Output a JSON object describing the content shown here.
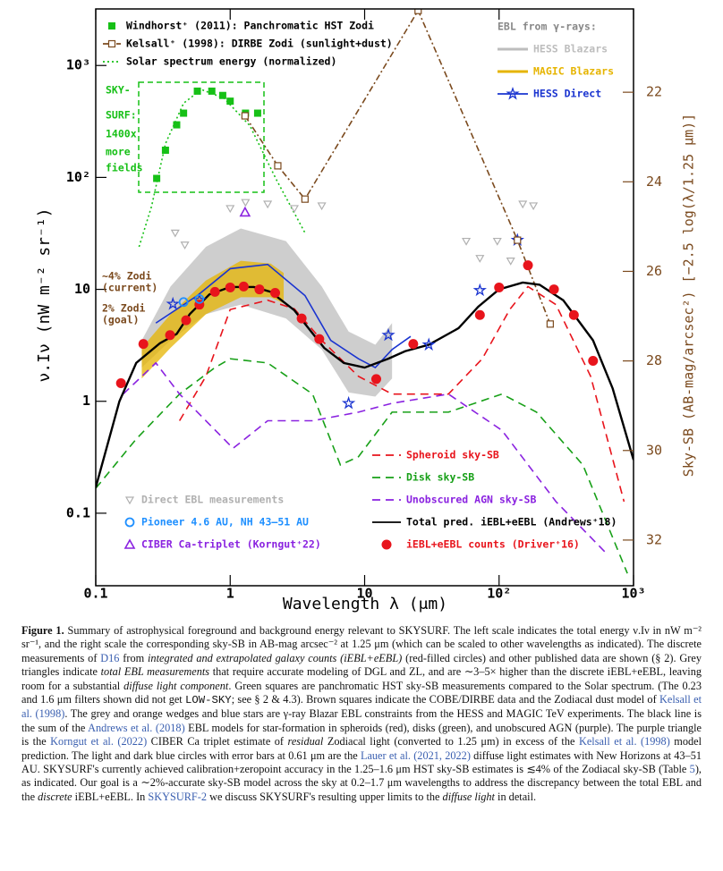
{
  "chart_data": {
    "type": "line",
    "xlabel": "Wavelength λ (μm)",
    "ylabel": "ν.Iν (nW m⁻² sr⁻¹)",
    "y2label": "Sky-SB (AB-mag/arcsec²) [−2.5 log(λ/1.25 μm)]",
    "xscale": "log",
    "yscale": "log",
    "xlim": [
      0.1,
      1000
    ],
    "ylim": [
      0.0225,
      3200
    ],
    "y2lim": [
      33.02,
      20.14
    ],
    "xticks": [
      0.1,
      1,
      10,
      {
        "value": 100,
        "label": "10²"
      },
      {
        "value": 1000,
        "label": "10³"
      }
    ],
    "yticks": [
      0.1,
      1,
      10,
      {
        "value": 100,
        "label": "10²"
      },
      {
        "value": 1000,
        "label": "10³"
      }
    ],
    "y2ticks": [
      22,
      24,
      26,
      28,
      30,
      32
    ],
    "legend_title": "EBL from γ-rays:",
    "annotations": [
      "SKY-",
      "SURF:",
      "1400x",
      "more",
      "fields",
      "~4% Zodi",
      "(current)",
      "2% Zodi",
      "(goal)"
    ],
    "series": [
      {
        "name": "HESS Blazars",
        "color": "#bdbdbd",
        "style": "band",
        "legend": "upper right",
        "x": [
          0.22,
          0.36,
          0.66,
          1.2,
          2.6,
          4.8,
          7.6,
          12,
          16
        ],
        "values": [
          3.5,
          10.6,
          24,
          35,
          27,
          10.6,
          4.2,
          3.2,
          5.0
        ],
        "lower": [
          2.0,
          3.5,
          6,
          7.3,
          5.5,
          2.9,
          1.2,
          1.1,
          1.6
        ]
      },
      {
        "name": "MAGIC Blazars",
        "color": "#e6b400",
        "style": "band",
        "legend": "upper right",
        "x": [
          0.22,
          0.36,
          0.66,
          1.2,
          2.0,
          2.5
        ],
        "values": [
          3.0,
          6,
          12,
          18,
          17,
          14
        ],
        "lower": [
          1.6,
          3.0,
          6,
          8.5,
          8.5,
          7.5
        ]
      },
      {
        "name": "HESS Direct",
        "color": "#1a34d0",
        "style": "line-star",
        "legend": "upper right",
        "x": [
          0.28,
          0.57,
          1.0,
          1.9,
          3.6,
          5.6,
          9,
          12,
          16,
          22
        ],
        "values": [
          5.0,
          8.8,
          15.3,
          16.7,
          8.8,
          3.5,
          2.4,
          2.0,
          2.9,
          3.8
        ],
        "points_x": [
          0.375,
          0.59,
          7.6,
          15,
          30,
          72,
          137
        ],
        "points": [
          7.4,
          8.0,
          0.96,
          3.9,
          3.2,
          9.8,
          27.5
        ]
      },
      {
        "name": "Windhorst⁺ (2011): Panchromatic HST Zodi",
        "color": "#16c016",
        "style": "square",
        "legend": "upper left",
        "x": [
          0.284,
          0.33,
          0.4,
          0.45,
          0.57,
          0.73,
          0.88,
          1.0,
          1.3,
          1.6
        ],
        "values": [
          98,
          175,
          295,
          375,
          590,
          590,
          540,
          480,
          375,
          375
        ]
      },
      {
        "name": "Kelsall⁺ (1998): DIRBE Zodi (sunlight+dust)",
        "color": "#7b4a1e",
        "style": "dashdot-open-square",
        "legend": "upper left",
        "x": [
          1.29,
          2.26,
          3.6,
          25,
          137,
          240
        ],
        "values": [
          355,
          127,
          64,
          3100,
          27.5,
          4.9
        ]
      },
      {
        "name": "Solar spectrum energy (normalized)",
        "color": "#16c016",
        "style": "dotted",
        "legend": "upper left",
        "x": [
          0.21,
          0.26,
          0.33,
          0.45,
          0.61,
          0.9,
          1.4,
          2.2,
          3.6
        ],
        "values": [
          24,
          55,
          200,
          460,
          610,
          510,
          290,
          96,
          32
        ]
      },
      {
        "name": "Spheroid sky-SB",
        "color": "#e8141c",
        "style": "dashed",
        "legend": "lower right",
        "x": [
          0.42,
          0.66,
          1.0,
          1.9,
          3.0,
          4.8,
          9,
          16,
          42,
          75,
          120,
          164,
          265,
          480,
          850
        ],
        "values": [
          0.67,
          1.67,
          6.6,
          8,
          6.7,
          3.5,
          1.67,
          1.16,
          1.16,
          2.4,
          6.6,
          10.6,
          7.3,
          1.67,
          0.127
        ]
      },
      {
        "name": "Disk sky-SB",
        "color": "#18a018",
        "style": "dashed",
        "legend": "lower right",
        "x": [
          0.1,
          0.2,
          0.42,
          0.77,
          1.0,
          1.9,
          4.1,
          6.6,
          9,
          16,
          42,
          105,
          190,
          420,
          900
        ],
        "values": [
          0.167,
          0.46,
          1.16,
          2.0,
          2.4,
          2.2,
          1.16,
          0.27,
          0.32,
          0.8,
          0.8,
          1.16,
          0.8,
          0.27,
          0.029
        ]
      },
      {
        "name": "Unobscured AGN sky-SB",
        "color": "#8a22e0",
        "style": "dashed",
        "legend": "lower right",
        "x": [
          0.16,
          0.28,
          0.42,
          0.66,
          1.05,
          1.9,
          4.1,
          9,
          16,
          42,
          105,
          265,
          650
        ],
        "values": [
          1.16,
          2.2,
          1.16,
          0.67,
          0.38,
          0.67,
          0.67,
          0.8,
          0.96,
          1.16,
          0.55,
          0.127,
          0.042
        ]
      },
      {
        "name": "Total pred. iEBL+eEBL (Andrews⁺18)",
        "color": "#000000",
        "style": "solid",
        "legend": "lower right",
        "x": [
          0.1,
          0.15,
          0.2,
          0.3,
          0.4,
          0.5,
          0.7,
          1,
          1.5,
          2,
          3,
          4,
          5,
          7,
          10,
          15,
          20,
          30,
          50,
          70,
          100,
          150,
          200,
          300,
          500,
          700,
          1000
        ],
        "values": [
          0.17,
          1.0,
          2.2,
          3.3,
          4.0,
          6,
          9,
          10.5,
          10.5,
          9.5,
          6.5,
          4.2,
          3.0,
          2.2,
          2.0,
          2.4,
          2.8,
          3.2,
          4.5,
          7.0,
          10,
          11.5,
          11,
          8,
          3.5,
          1.3,
          0.3
        ]
      },
      {
        "name": "iEBL+eEBL counts (Driver⁺16)",
        "color": "#e8141c",
        "style": "circle",
        "legend": "lower right",
        "x": [
          0.154,
          0.226,
          0.357,
          0.47,
          0.59,
          0.77,
          1.0,
          1.26,
          1.65,
          2.16,
          3.4,
          4.6,
          12.2,
          23,
          72,
          100,
          164,
          256,
          360,
          500
        ],
        "values": [
          1.45,
          3.25,
          3.9,
          5.3,
          7.3,
          9.5,
          10.4,
          10.6,
          10.0,
          9.3,
          5.5,
          3.6,
          1.58,
          3.25,
          5.9,
          10.4,
          16.4,
          10,
          5.9,
          2.3
        ]
      },
      {
        "name": "Direct EBL measurements",
        "color": "#b0b0b0",
        "style": "triangle-down",
        "legend": "lower left",
        "x": [
          0.39,
          0.46,
          1.0,
          1.3,
          1.9,
          3.0,
          4.8,
          57,
          72,
          97,
          122,
          150,
          180
        ],
        "values": [
          32,
          25,
          53,
          60,
          58,
          53,
          56,
          27,
          19,
          27,
          18,
          58,
          56
        ]
      },
      {
        "name": "Pioneer 4.6 AU, NH 43–51 AU",
        "color": "#1e8fff",
        "style": "open-circle",
        "legend": "lower left",
        "x": [
          0.45,
          0.59
        ],
        "values": [
          7.7,
          8.2
        ]
      },
      {
        "name": "CIBER Ca-triplet (Korngut⁺22)",
        "color": "#8a22e0",
        "style": "open-triangle",
        "legend": "lower left",
        "x": [
          1.29
        ],
        "values": [
          48.8
        ]
      }
    ]
  },
  "caption": [
    {
      "text": "Figure 1.",
      "style": "b"
    },
    {
      "text": " Summary of astrophysical foreground and background energy relevant to SKYSURF. The left scale indicates the total energy ν.Iν in nW m⁻² sr⁻¹, and the right scale the corresponding sky-SB in AB-mag arcsec⁻² at 1.25 μm (which can be scaled to other wavelengths as indicated). The discrete measurements of "
    },
    {
      "text": "D16",
      "style": "link"
    },
    {
      "text": " from "
    },
    {
      "text": "integrated and extrapolated galaxy counts (iEBL+eEBL)",
      "style": "i"
    },
    {
      "text": " (red-filled circles) and other published data are shown (§ 2). Grey triangles indicate "
    },
    {
      "text": "total EBL measurements",
      "style": "i"
    },
    {
      "text": " that require accurate modeling of DGL and ZL, and are ∼3–5× higher than the discrete iEBL+eEBL, leaving room for a substantial "
    },
    {
      "text": "diffuse light component",
      "style": "i"
    },
    {
      "text": ". Green squares are panchromatic HST sky-SB measurements compared to the Solar spectrum. (The 0.23 and 1.6 μm filters shown did not get "
    },
    {
      "text": "LOW-SKY",
      "style": "mono"
    },
    {
      "text": "; see § 2 & 4.3). Brown squares indicate the COBE/DIRBE data and the Zodiacal dust model of "
    },
    {
      "text": "Kelsall et al. (1998)",
      "style": "link"
    },
    {
      "text": ". The grey and orange wedges and blue stars are γ-ray Blazar EBL constraints from the HESS and MAGIC TeV experiments. The black line is the sum of the "
    },
    {
      "text": "Andrews et al. (2018)",
      "style": "link"
    },
    {
      "text": " EBL models for star-formation in spheroids (red), disks (green), and unobscured AGN (purple). The purple triangle is the "
    },
    {
      "text": "Korngut et al. (2022)",
      "style": "link"
    },
    {
      "text": " CIBER Ca triplet estimate of "
    },
    {
      "text": "residual",
      "style": "i"
    },
    {
      "text": " Zodiacal light (converted to 1.25 μm) in excess of the "
    },
    {
      "text": "Kelsall et al. (1998)",
      "style": "link"
    },
    {
      "text": " model prediction. The light and dark blue circles with error bars at 0.61 μm are the "
    },
    {
      "text": "Lauer et al. (2021, 2022)",
      "style": "link"
    },
    {
      "text": " diffuse light estimates with New Horizons at 43–51 AU. SKYSURF's currently achieved calibration+zeropoint accuracy in the 1.25–1.6 μm HST sky-SB estimates is ≲4% of the Zodiacal sky-SB (Table "
    },
    {
      "text": "5",
      "style": "link"
    },
    {
      "text": "), as indicated. Our goal is a ∼2%-accurate sky-SB model across the sky at 0.2–1.7 μm wavelengths to address the discrepancy between the total EBL and the "
    },
    {
      "text": "discrete",
      "style": "i"
    },
    {
      "text": " iEBL+eEBL. In "
    },
    {
      "text": "SKYSURF-2",
      "style": "link"
    },
    {
      "text": " we discuss SKYSURF's resulting upper limits to the "
    },
    {
      "text": "diffuse light",
      "style": "i"
    },
    {
      "text": " in detail."
    }
  ]
}
